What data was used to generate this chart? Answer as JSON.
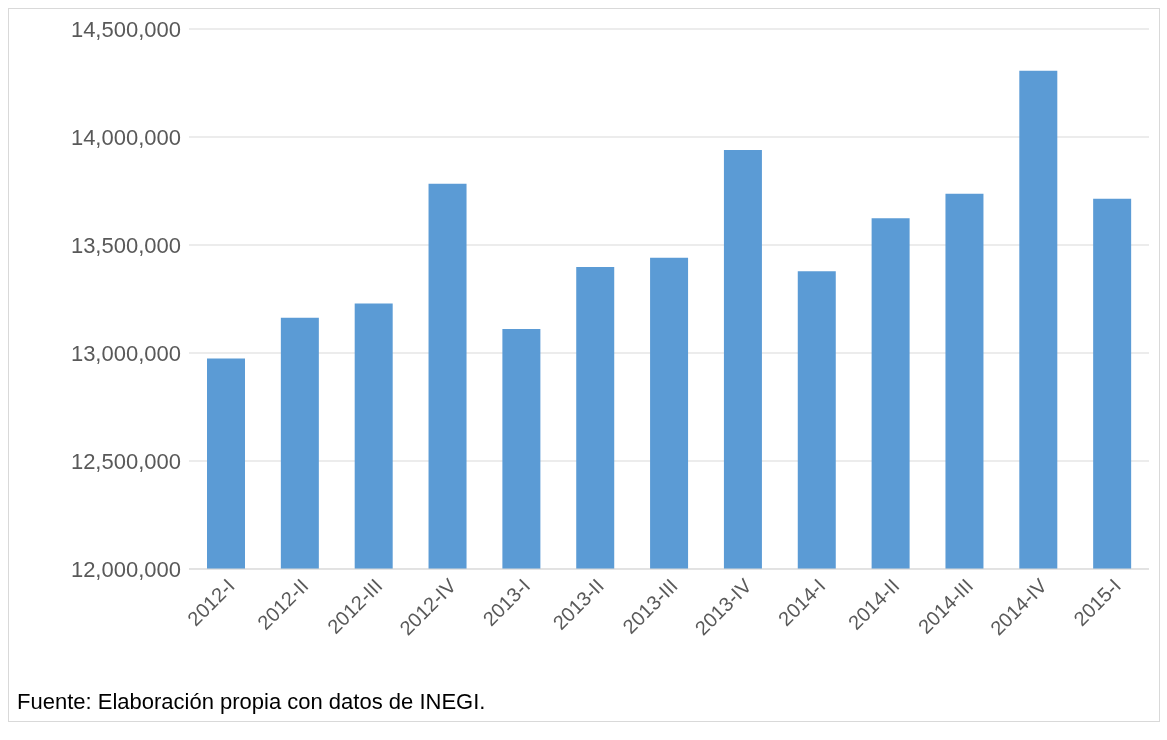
{
  "chart_data": {
    "type": "bar",
    "categories": [
      "2012-I",
      "2012-II",
      "2012-III",
      "2012-IV",
      "2013-I",
      "2013-II",
      "2013-III",
      "2013-IV",
      "2014-I",
      "2014-II",
      "2014-III",
      "2014-IV",
      "2015-I"
    ],
    "values": [
      12975000,
      13163000,
      13229000,
      13784000,
      13111000,
      13398000,
      13441000,
      13940000,
      13379000,
      13624000,
      13737000,
      14307000,
      13714000
    ],
    "color": "#5b9bd5",
    "ylim": [
      12000000,
      14500000
    ],
    "yticks": [
      {
        "value": 12000000,
        "label": "12,000,000"
      },
      {
        "value": 12500000,
        "label": "12,500,000"
      },
      {
        "value": 13000000,
        "label": "13,000,000"
      },
      {
        "value": 13500000,
        "label": "13,500,000"
      },
      {
        "value": 14000000,
        "label": "14,000,000"
      },
      {
        "value": 14500000,
        "label": "14,500,000"
      }
    ],
    "grid": "y",
    "legend": false,
    "annotations": [
      "Fuente: Elaboración propia con datos de INEGI."
    ]
  }
}
